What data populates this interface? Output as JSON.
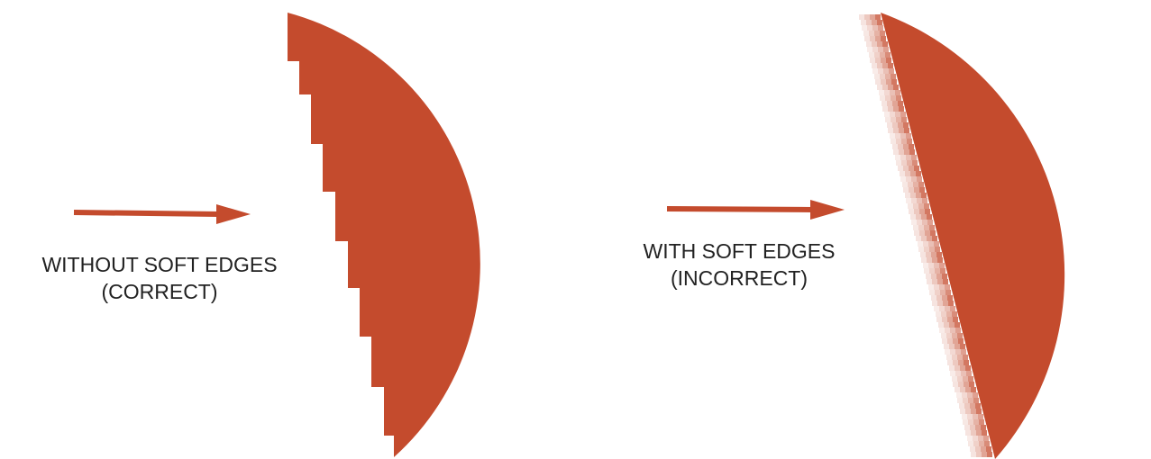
{
  "colors": {
    "shape": "#c44b2d",
    "text": "#222222",
    "background": "#ffffff"
  },
  "left_panel": {
    "label_line1": "WITHOUT SOFT EDGES",
    "label_line2": "(CORRECT)",
    "shape": "stair-stepped-half-disc",
    "arrow": "arrow-right-icon"
  },
  "right_panel": {
    "label_line1": "WITH SOFT EDGES",
    "label_line2": "(INCORRECT)",
    "shape": "half-disc-with-feathered-edge",
    "arrow": "arrow-right-icon"
  }
}
